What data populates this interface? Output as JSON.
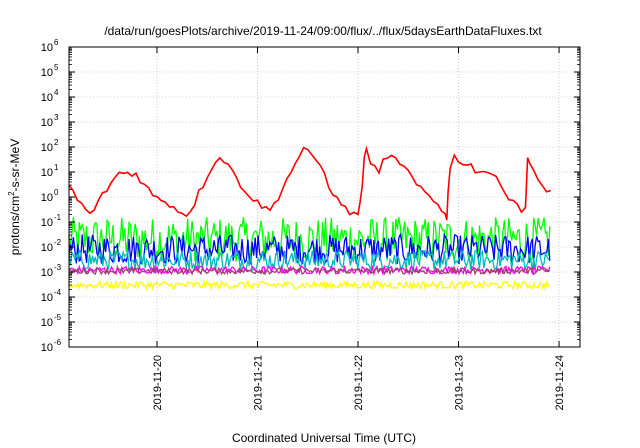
{
  "chart_data": {
    "type": "line",
    "title": "/data/run/goesPlots/archive/2019-11-24/09:00/flux/../flux/5daysEarthDataFluxes.txt",
    "xlabel": "Coordinated Universal Time (UTC)",
    "ylabel": {
      "base": "protons/cm",
      "sup": "2",
      "rest": "-s-sr-MeV"
    },
    "yscale": "log",
    "ylim_exp": [
      -6,
      6
    ],
    "y_tick_exponents": [
      -6,
      -5,
      -4,
      -3,
      -2,
      -1,
      0,
      1,
      2,
      3,
      4,
      5,
      6
    ],
    "y_tick_base": "10",
    "xlim_hours": [
      -21,
      101
    ],
    "x_ticks": [
      {
        "label": "2019-11-20",
        "hour": 0
      },
      {
        "label": "2019-11-21",
        "hour": 24
      },
      {
        "label": "2019-11-22",
        "hour": 48
      },
      {
        "label": "2019-11-23",
        "hour": 72
      },
      {
        "label": "2019-11-24",
        "hour": 96
      }
    ],
    "grid": true,
    "series": [
      {
        "color": "#ff0000",
        "points": [
          [
            -21,
            3
          ],
          [
            -20,
            1.5
          ],
          [
            -19,
            0.8
          ],
          [
            -18,
            0.5
          ],
          [
            -17,
            0.3
          ],
          [
            -16,
            0.2
          ],
          [
            -15,
            0.35
          ],
          [
            -14,
            0.6
          ],
          [
            -13,
            1.2
          ],
          [
            -12,
            2
          ],
          [
            -11,
            3.5
          ],
          [
            -10,
            6
          ],
          [
            -9,
            9
          ],
          [
            -8,
            9.5
          ],
          [
            -7,
            9
          ],
          [
            -6,
            8.5
          ],
          [
            -5,
            8.5
          ],
          [
            -4,
            5
          ],
          [
            -3,
            3
          ],
          [
            -2,
            2
          ],
          [
            -1,
            1.2
          ],
          [
            0,
            0.9
          ],
          [
            1,
            0.8
          ],
          [
            2,
            0.7
          ],
          [
            3,
            0.5
          ],
          [
            4,
            0.4
          ],
          [
            5,
            0.3
          ],
          [
            6,
            0.22
          ],
          [
            7,
            0.2
          ],
          [
            8,
            0.3
          ],
          [
            9,
            0.6
          ],
          [
            10,
            1.5
          ],
          [
            11,
            3
          ],
          [
            12,
            7
          ],
          [
            13,
            15
          ],
          [
            14,
            28
          ],
          [
            15,
            35
          ],
          [
            16,
            30
          ],
          [
            17,
            20
          ],
          [
            18,
            10
          ],
          [
            19,
            6
          ],
          [
            20,
            3
          ],
          [
            21,
            2
          ],
          [
            22,
            1.2
          ],
          [
            23,
            0.8
          ],
          [
            24,
            0.6
          ],
          [
            25,
            0.45
          ],
          [
            26,
            0.35
          ],
          [
            27,
            0.3
          ],
          [
            28,
            0.5
          ],
          [
            29,
            1
          ],
          [
            30,
            2.5
          ],
          [
            31,
            5
          ],
          [
            32,
            10
          ],
          [
            33,
            22
          ],
          [
            34,
            45
          ],
          [
            35,
            80
          ],
          [
            36,
            60
          ],
          [
            37,
            40
          ],
          [
            38,
            30
          ],
          [
            39,
            20
          ],
          [
            40,
            8
          ],
          [
            41,
            3
          ],
          [
            42,
            1.5
          ],
          [
            43,
            0.8
          ],
          [
            44,
            0.5
          ],
          [
            45,
            0.35
          ],
          [
            46,
            0.25
          ],
          [
            47,
            0.2
          ],
          [
            48,
            0.22
          ],
          [
            48.5,
            0.7
          ],
          [
            49,
            2
          ],
          [
            49.5,
            50
          ],
          [
            50,
            70
          ],
          [
            51,
            20
          ],
          [
            52,
            15
          ],
          [
            53,
            12
          ],
          [
            54,
            25
          ],
          [
            55,
            30
          ],
          [
            56,
            40
          ],
          [
            57,
            30
          ],
          [
            58,
            25
          ],
          [
            59,
            15
          ],
          [
            60,
            10
          ],
          [
            61,
            5
          ],
          [
            62,
            3
          ],
          [
            63,
            2
          ],
          [
            64,
            1.5
          ],
          [
            65,
            1
          ],
          [
            66,
            0.7
          ],
          [
            67,
            0.5
          ],
          [
            68,
            0.3
          ],
          [
            68.8,
            0.25
          ],
          [
            69.2,
            0.15
          ],
          [
            69.5,
            1.5
          ],
          [
            70,
            15
          ],
          [
            71,
            40
          ],
          [
            72,
            30
          ],
          [
            73,
            25
          ],
          [
            74,
            20
          ],
          [
            75,
            18
          ],
          [
            76,
            12
          ],
          [
            77,
            10
          ],
          [
            78,
            12
          ],
          [
            79,
            10
          ],
          [
            80,
            8
          ],
          [
            81,
            5
          ],
          [
            82,
            3
          ],
          [
            83,
            2
          ],
          [
            84,
            1
          ],
          [
            85,
            0.8
          ],
          [
            86,
            0.5
          ],
          [
            87,
            0.3
          ],
          [
            87.5,
            0.35
          ],
          [
            88,
            0.3
          ],
          [
            88.5,
            40
          ],
          [
            89,
            20
          ],
          [
            90,
            15
          ],
          [
            91,
            5
          ],
          [
            92,
            3
          ],
          [
            93,
            1.5
          ],
          [
            94,
            1.5
          ]
        ]
      },
      {
        "color": "#00ff00",
        "band": true,
        "level": 0.02,
        "spread": 0.9
      },
      {
        "color": "#0000ff",
        "band": true,
        "level": 0.008,
        "spread": 0.6
      },
      {
        "color": "#00bbbb",
        "band": true,
        "level": 0.003,
        "spread": 0.4
      },
      {
        "color": "#ff00ff",
        "band": true,
        "level": 0.0012,
        "spread": 0.15
      },
      {
        "color": "#ffff00",
        "band": true,
        "level": 0.0003,
        "spread": 0.15
      },
      {
        "color": "#994466",
        "band": true,
        "level": 0.0011,
        "spread": 0.12
      }
    ]
  }
}
